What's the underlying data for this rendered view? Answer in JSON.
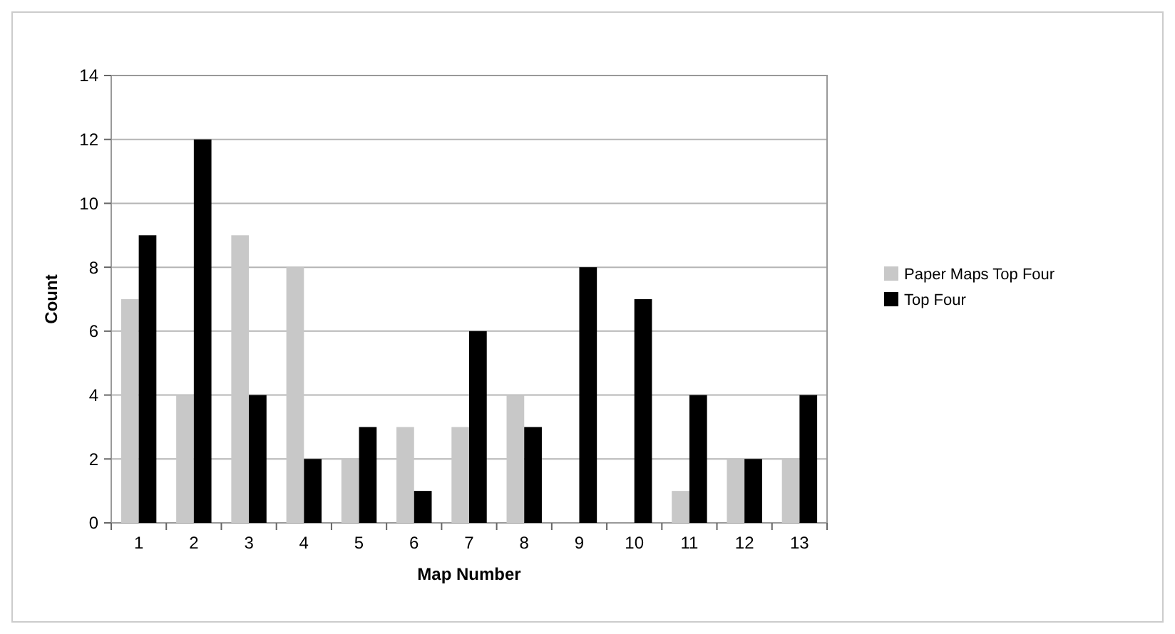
{
  "chart_data": {
    "type": "bar",
    "xlabel": "Map Number",
    "ylabel": "Count",
    "categories": [
      "1",
      "2",
      "3",
      "4",
      "5",
      "6",
      "7",
      "8",
      "9",
      "10",
      "11",
      "12",
      "13"
    ],
    "series": [
      {
        "name": "Paper Maps Top Four",
        "color": "#c8c8c8",
        "values": [
          7,
          4,
          9,
          8,
          2,
          3,
          3,
          4,
          0,
          0,
          1,
          2,
          2
        ]
      },
      {
        "name": "Top Four",
        "color": "#000000",
        "values": [
          9,
          12,
          4,
          2,
          3,
          1,
          6,
          3,
          8,
          7,
          4,
          2,
          4
        ]
      }
    ],
    "ylim": [
      0,
      14
    ],
    "yticks": [
      0,
      2,
      4,
      6,
      8,
      10,
      12,
      14
    ],
    "grid": "y",
    "legend": "right"
  }
}
